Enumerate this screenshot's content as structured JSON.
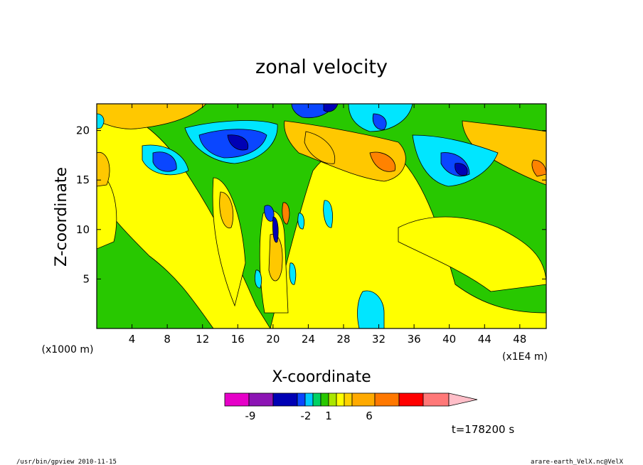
{
  "chart_data": {
    "type": "heatmap",
    "title": "zonal velocity",
    "xlabel": "X-coordinate",
    "ylabel": "Z-coordinate",
    "x_scale_note": "(x1E4 m)",
    "y_scale_note": "(x1000 m)",
    "xlim": [
      0,
      51
    ],
    "ylim": [
      0,
      22.7
    ],
    "x_ticks": [
      "4",
      "8",
      "12",
      "16",
      "20",
      "24",
      "28",
      "32",
      "36",
      "40",
      "44",
      "48"
    ],
    "y_ticks": [
      "5",
      "10",
      "15",
      "20"
    ],
    "colorbar": {
      "levels_labeled": [
        "-9",
        "-2",
        "1",
        "6"
      ],
      "colors": [
        "#e600c8",
        "#8c14b4",
        "#0000b4",
        "#0a46ff",
        "#00c8ff",
        "#00d264",
        "#28c800",
        "#aae600",
        "#ffff00",
        "#ffd200",
        "#ffaa00",
        "#ff7800",
        "#ff0000",
        "#ff7878",
        "#ffbec8"
      ]
    },
    "fill_palette": {
      "strong_neg": "#0000b4",
      "neg": "#0a46ff",
      "weak_neg": "#00e6ff",
      "zero": "#28c800",
      "weak_pos": "#ffff00",
      "pos": "#ffc800",
      "strong_pos": "#ff8200"
    }
  },
  "footer": {
    "time_label": "t=178200 s",
    "program": "/usr/bin/gpview  2010-11-15",
    "file": "arare-earth_VelX.nc@VelX"
  }
}
